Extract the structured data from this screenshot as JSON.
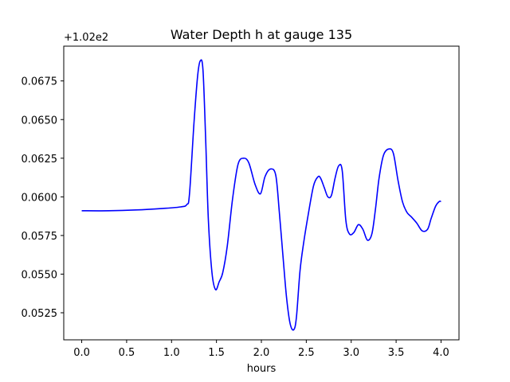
{
  "chart_data": {
    "type": "line",
    "title": "Water Depth h at gauge 135",
    "xlabel": "hours",
    "ylabel": "",
    "y_offset_label": "+1.02e2",
    "xlim": [
      -0.2,
      4.2
    ],
    "ylim": [
      0.05075,
      0.06975
    ],
    "x_ticks": [
      0.0,
      0.5,
      1.0,
      1.5,
      2.0,
      2.5,
      3.0,
      3.5,
      4.0
    ],
    "x_tick_labels": [
      "0.0",
      "0.5",
      "1.0",
      "1.5",
      "2.0",
      "2.5",
      "3.0",
      "3.5",
      "4.0"
    ],
    "y_ticks": [
      0.0525,
      0.055,
      0.0575,
      0.06,
      0.0625,
      0.065,
      0.0675
    ],
    "y_tick_labels": [
      "0.0525",
      "0.0550",
      "0.0575",
      "0.0600",
      "0.0625",
      "0.0650",
      "0.0675"
    ],
    "grid": false,
    "line_color": "#0000ff",
    "series": [
      {
        "x": [
          0.0,
          0.3,
          0.6,
          0.9,
          1.1,
          1.17,
          1.2,
          1.25,
          1.29,
          1.32,
          1.35,
          1.38,
          1.41,
          1.45,
          1.49,
          1.53,
          1.57,
          1.62,
          1.68,
          1.74,
          1.8,
          1.86,
          1.93,
          1.99,
          2.04,
          2.1,
          2.16,
          2.2,
          2.24,
          2.28,
          2.32,
          2.36,
          2.39,
          2.43,
          2.47,
          2.52,
          2.58,
          2.63,
          2.66,
          2.7,
          2.74,
          2.78,
          2.82,
          2.86,
          2.9,
          2.94,
          2.98,
          3.03,
          3.08,
          3.13,
          3.18,
          3.23,
          3.27,
          3.31,
          3.36,
          3.42,
          3.47,
          3.52,
          3.57,
          3.62,
          3.67,
          3.73,
          3.79,
          3.85,
          3.89,
          3.94,
          3.98,
          4.0
        ],
        "y": [
          0.0591,
          0.0591,
          0.05915,
          0.05925,
          0.05935,
          0.0595,
          0.0602,
          0.0648,
          0.0678,
          0.0688,
          0.0682,
          0.0637,
          0.0585,
          0.0551,
          0.054,
          0.0545,
          0.0551,
          0.0568,
          0.0599,
          0.0621,
          0.0625,
          0.0622,
          0.0608,
          0.0602,
          0.0613,
          0.0618,
          0.0614,
          0.059,
          0.0562,
          0.0535,
          0.0518,
          0.0514,
          0.0522,
          0.0552,
          0.057,
          0.0588,
          0.0607,
          0.0613,
          0.0612,
          0.0606,
          0.06,
          0.0601,
          0.0612,
          0.062,
          0.0617,
          0.0585,
          0.0576,
          0.0577,
          0.0582,
          0.0579,
          0.0572,
          0.0576,
          0.0592,
          0.0612,
          0.0627,
          0.0631,
          0.0628,
          0.0611,
          0.0597,
          0.059,
          0.0587,
          0.0583,
          0.0578,
          0.0579,
          0.0586,
          0.0594,
          0.0597,
          0.0597
        ]
      }
    ]
  }
}
